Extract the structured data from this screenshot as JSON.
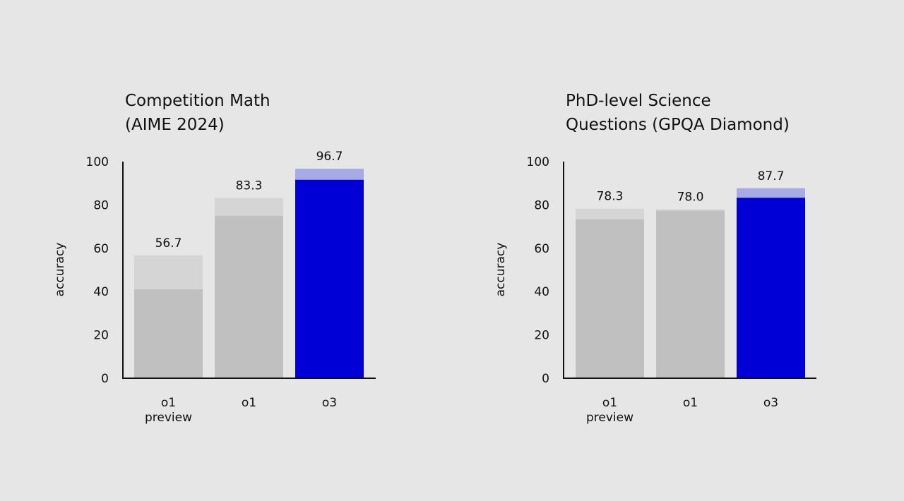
{
  "chart_data": [
    {
      "type": "bar",
      "title": [
        "Competition Math",
        "(AIME 2024)"
      ],
      "xlabel": "",
      "ylabel": "accuracy",
      "ylim": [
        0,
        100
      ],
      "yticks": [
        0,
        20,
        40,
        60,
        80,
        100
      ],
      "grid": false,
      "categories": [
        [
          "o1",
          "preview"
        ],
        [
          "o1"
        ],
        [
          "o3"
        ]
      ],
      "series": [
        {
          "values": [
            41,
            75,
            91.6
          ]
        },
        {
          "values": [
            56.7,
            83.3,
            96.7
          ]
        }
      ],
      "data_labels": [
        "56.7",
        "83.3",
        "96.7"
      ],
      "colors": {
        "base": [
          "#c0c0c0",
          "#c0c0c0",
          "#0000d6"
        ],
        "extension": [
          "#d5d5d5",
          "#d5d5d5",
          "#a6abe8"
        ]
      }
    },
    {
      "type": "bar",
      "title": [
        "PhD-level Science",
        "Questions (GPQA Diamond)"
      ],
      "xlabel": "",
      "ylabel": "accuracy",
      "ylim": [
        0,
        100
      ],
      "yticks": [
        0,
        20,
        40,
        60,
        80,
        100
      ],
      "grid": false,
      "categories": [
        [
          "o1",
          "preview"
        ],
        [
          "o1"
        ],
        [
          "o3"
        ]
      ],
      "series": [
        {
          "values": [
            73.3,
            77.3,
            83.3
          ]
        },
        {
          "values": [
            78.3,
            78.0,
            87.7
          ]
        }
      ],
      "data_labels": [
        "78.3",
        "78.0",
        "87.7"
      ],
      "colors": {
        "base": [
          "#c0c0c0",
          "#c0c0c0",
          "#0000d6"
        ],
        "extension": [
          "#d5d5d5",
          "#d5d5d5",
          "#a6abe8"
        ]
      }
    }
  ]
}
